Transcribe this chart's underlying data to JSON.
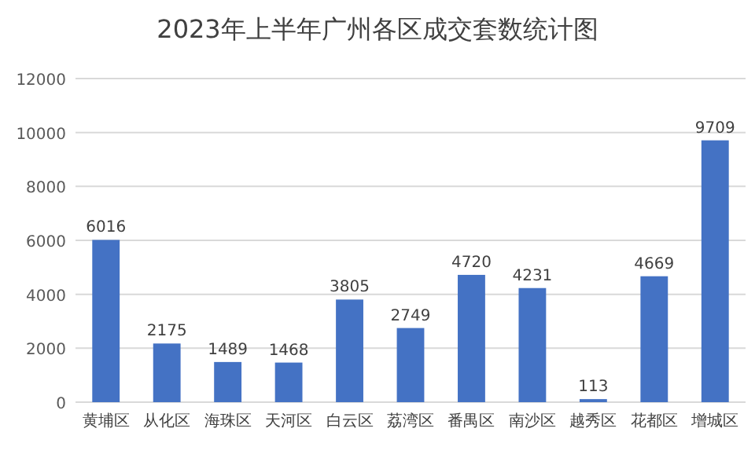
{
  "chart_data": {
    "type": "bar",
    "title": "2023年上半年广州各区成交套数统计图",
    "categories": [
      "黄埔区",
      "从化区",
      "海珠区",
      "天河区",
      "白云区",
      "荔湾区",
      "番禺区",
      "南沙区",
      "越秀区",
      "花都区",
      "增城区"
    ],
    "values": [
      6016,
      2175,
      1489,
      1468,
      3805,
      2749,
      4720,
      4231,
      113,
      4669,
      9709
    ],
    "color": "#4472c4",
    "ylim": [
      0,
      12000
    ],
    "yticks": [
      0,
      2000,
      4000,
      6000,
      8000,
      10000,
      12000
    ],
    "grid": "y",
    "data_labels": true
  }
}
